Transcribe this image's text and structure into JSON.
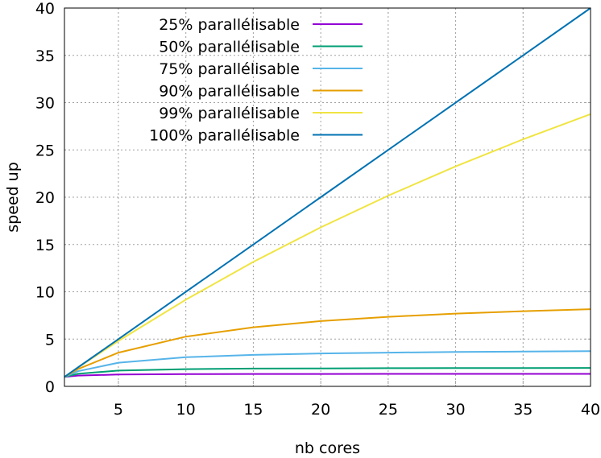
{
  "chart_data": {
    "type": "line",
    "xlabel": "nb cores",
    "ylabel": "speed up",
    "xlim": [
      1,
      40
    ],
    "ylim": [
      0,
      40
    ],
    "xticks": [
      5,
      10,
      15,
      20,
      25,
      30,
      35,
      40
    ],
    "yticks": [
      0,
      5,
      10,
      15,
      20,
      25,
      30,
      35,
      40
    ],
    "grid": true,
    "legend_position": "top-left",
    "series": [
      {
        "name": "25% parallélisable",
        "fraction": 0.25,
        "color": "#9400d3",
        "x": [
          1,
          2,
          5,
          10,
          15,
          20,
          25,
          30,
          35,
          40
        ],
        "values": [
          1.0,
          1.14,
          1.25,
          1.29,
          1.31,
          1.31,
          1.32,
          1.32,
          1.32,
          1.32
        ]
      },
      {
        "name": "50% parallélisable",
        "fraction": 0.5,
        "color": "#009e73",
        "x": [
          1,
          2,
          5,
          10,
          15,
          20,
          25,
          30,
          35,
          40
        ],
        "values": [
          1.0,
          1.33,
          1.67,
          1.82,
          1.88,
          1.9,
          1.92,
          1.94,
          1.94,
          1.95
        ]
      },
      {
        "name": "75% parallélisable",
        "fraction": 0.75,
        "color": "#56b4e9",
        "x": [
          1,
          2,
          5,
          10,
          15,
          20,
          25,
          30,
          35,
          40
        ],
        "values": [
          1.0,
          1.6,
          2.5,
          3.08,
          3.33,
          3.48,
          3.57,
          3.64,
          3.68,
          3.72
        ]
      },
      {
        "name": "90% parallélisable",
        "fraction": 0.9,
        "color": "#e69f00",
        "x": [
          1,
          2,
          5,
          10,
          15,
          20,
          25,
          30,
          35,
          40
        ],
        "values": [
          1.0,
          1.82,
          3.57,
          5.26,
          6.25,
          6.9,
          7.35,
          7.69,
          7.95,
          8.16
        ]
      },
      {
        "name": "99% parallélisable",
        "fraction": 0.99,
        "color": "#f0e442",
        "x": [
          1,
          2,
          5,
          10,
          15,
          20,
          25,
          30,
          35,
          40
        ],
        "values": [
          1.0,
          1.98,
          4.81,
          9.17,
          13.16,
          16.81,
          20.16,
          23.26,
          26.12,
          28.78
        ]
      },
      {
        "name": "100% parallélisable",
        "fraction": 1.0,
        "color": "#0072b2",
        "x": [
          1,
          2,
          5,
          10,
          15,
          20,
          25,
          30,
          35,
          40
        ],
        "values": [
          1,
          2,
          5,
          10,
          15,
          20,
          25,
          30,
          35,
          40
        ]
      }
    ]
  }
}
